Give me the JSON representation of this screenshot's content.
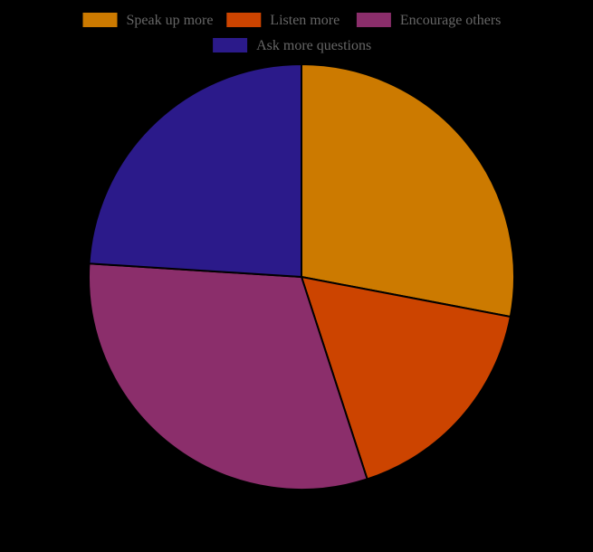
{
  "chart_data": {
    "type": "pie",
    "title": "",
    "categories": [
      "Speak up more",
      "Listen more",
      "Encourage others",
      "Ask more questions"
    ],
    "values": [
      28,
      17,
      31,
      24
    ],
    "colors": [
      "#CC7A00",
      "#CC4400",
      "#8B2E6B",
      "#2B1A8A"
    ],
    "legend_position": "top",
    "start_angle_deg": 0,
    "direction": "clockwise"
  },
  "colors": {
    "background": "#000000",
    "legend_text": "#666666",
    "slice_border": "#000000"
  }
}
